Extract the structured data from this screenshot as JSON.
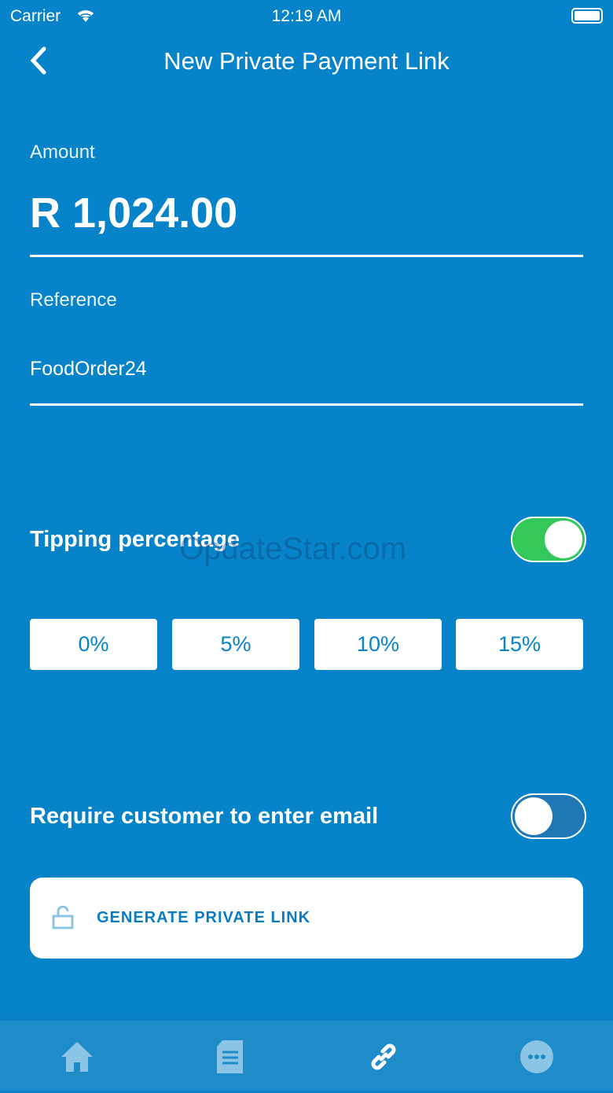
{
  "status": {
    "carrier": "Carrier",
    "time": "12:19 AM"
  },
  "header": {
    "title": "New Private Payment Link"
  },
  "amount": {
    "label": "Amount",
    "value": "R 1,024.00"
  },
  "reference": {
    "label": "Reference",
    "value": "FoodOrder24"
  },
  "tipping": {
    "label": "Tipping percentage",
    "enabled": true,
    "options": [
      "0%",
      "5%",
      "10%",
      "15%"
    ]
  },
  "email": {
    "label": "Require customer to enter email",
    "enabled": false
  },
  "generate": {
    "label": "GENERATE PRIVATE LINK"
  },
  "tabs": [
    {
      "icon": "home-icon"
    },
    {
      "icon": "document-icon"
    },
    {
      "icon": "link-icon",
      "active": true
    },
    {
      "icon": "more-icon"
    }
  ],
  "watermark": "OpdateStar.com",
  "colors": {
    "background": "#0683c9",
    "toggle_on": "#34c759"
  }
}
